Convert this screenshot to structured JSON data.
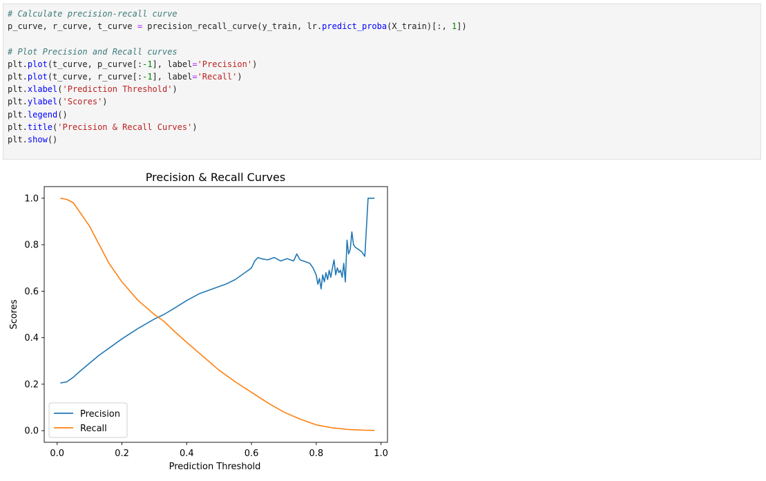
{
  "code_cell": {
    "lines": [
      [
        {
          "t": "# Calculate precision-recall curve",
          "c": "c-com"
        }
      ],
      [
        {
          "t": "p_curve, r_curve, t_curve ",
          "c": "c-txt"
        },
        {
          "t": "=",
          "c": "c-op"
        },
        {
          "t": " precision_recall_curve(y_train, lr.",
          "c": "c-txt"
        },
        {
          "t": "predict_proba",
          "c": "c-fn"
        },
        {
          "t": "(X_train)[:, ",
          "c": "c-txt"
        },
        {
          "t": "1",
          "c": "c-num"
        },
        {
          "t": "])",
          "c": "c-txt"
        }
      ],
      [],
      [
        {
          "t": "# Plot Precision and Recall curves",
          "c": "c-com"
        }
      ],
      [
        {
          "t": "plt.",
          "c": "c-txt"
        },
        {
          "t": "plot",
          "c": "c-fn"
        },
        {
          "t": "(t_curve, p_curve[:",
          "c": "c-txt"
        },
        {
          "t": "-1",
          "c": "c-num"
        },
        {
          "t": "], label",
          "c": "c-txt"
        },
        {
          "t": "=",
          "c": "c-op"
        },
        {
          "t": "'Precision'",
          "c": "c-str"
        },
        {
          "t": ")",
          "c": "c-txt"
        }
      ],
      [
        {
          "t": "plt.",
          "c": "c-txt"
        },
        {
          "t": "plot",
          "c": "c-fn"
        },
        {
          "t": "(t_curve, r_curve[:",
          "c": "c-txt"
        },
        {
          "t": "-1",
          "c": "c-num"
        },
        {
          "t": "], label",
          "c": "c-txt"
        },
        {
          "t": "=",
          "c": "c-op"
        },
        {
          "t": "'Recall'",
          "c": "c-str"
        },
        {
          "t": ")",
          "c": "c-txt"
        }
      ],
      [
        {
          "t": "plt.",
          "c": "c-txt"
        },
        {
          "t": "xlabel",
          "c": "c-fn"
        },
        {
          "t": "(",
          "c": "c-txt"
        },
        {
          "t": "'Prediction Threshold'",
          "c": "c-str"
        },
        {
          "t": ")",
          "c": "c-txt"
        }
      ],
      [
        {
          "t": "plt.",
          "c": "c-txt"
        },
        {
          "t": "ylabel",
          "c": "c-fn"
        },
        {
          "t": "(",
          "c": "c-txt"
        },
        {
          "t": "'Scores'",
          "c": "c-str"
        },
        {
          "t": ")",
          "c": "c-txt"
        }
      ],
      [
        {
          "t": "plt.",
          "c": "c-txt"
        },
        {
          "t": "legend",
          "c": "c-fn"
        },
        {
          "t": "()",
          "c": "c-txt"
        }
      ],
      [
        {
          "t": "plt.",
          "c": "c-txt"
        },
        {
          "t": "title",
          "c": "c-fn"
        },
        {
          "t": "(",
          "c": "c-txt"
        },
        {
          "t": "'Precision & Recall Curves'",
          "c": "c-str"
        },
        {
          "t": ")",
          "c": "c-txt"
        }
      ],
      [
        {
          "t": "plt.",
          "c": "c-txt"
        },
        {
          "t": "show",
          "c": "c-fn"
        },
        {
          "t": "()",
          "c": "c-txt"
        }
      ]
    ]
  },
  "chart_data": {
    "type": "line",
    "title": "Precision & Recall Curves",
    "xlabel": "Prediction Threshold",
    "ylabel": "Scores",
    "xlim": [
      -0.04,
      1.02
    ],
    "ylim": [
      -0.05,
      1.05
    ],
    "xticks": [
      "0.0",
      "0.2",
      "0.4",
      "0.6",
      "0.8",
      "1.0"
    ],
    "yticks": [
      "0.0",
      "0.2",
      "0.4",
      "0.6",
      "0.8",
      "1.0"
    ],
    "grid": false,
    "legend": "lower-left",
    "series": [
      {
        "name": "Precision",
        "color": "#1f77b4",
        "x": [
          0.01,
          0.03,
          0.05,
          0.07,
          0.1,
          0.13,
          0.16,
          0.2,
          0.25,
          0.3,
          0.33,
          0.36,
          0.4,
          0.44,
          0.48,
          0.52,
          0.55,
          0.58,
          0.6,
          0.61,
          0.62,
          0.63,
          0.65,
          0.67,
          0.69,
          0.71,
          0.73,
          0.74,
          0.75,
          0.76,
          0.78,
          0.79,
          0.8,
          0.805,
          0.81,
          0.815,
          0.82,
          0.825,
          0.83,
          0.835,
          0.84,
          0.845,
          0.85,
          0.855,
          0.86,
          0.865,
          0.87,
          0.875,
          0.88,
          0.885,
          0.89,
          0.895,
          0.9,
          0.905,
          0.91,
          0.915,
          0.92,
          0.93,
          0.94,
          0.95,
          0.96,
          0.97,
          0.98
        ],
        "y": [
          0.205,
          0.21,
          0.23,
          0.255,
          0.29,
          0.325,
          0.355,
          0.395,
          0.44,
          0.48,
          0.5,
          0.525,
          0.56,
          0.59,
          0.61,
          0.63,
          0.65,
          0.68,
          0.7,
          0.73,
          0.745,
          0.74,
          0.735,
          0.745,
          0.73,
          0.74,
          0.73,
          0.76,
          0.735,
          0.73,
          0.72,
          0.7,
          0.67,
          0.63,
          0.655,
          0.61,
          0.67,
          0.64,
          0.68,
          0.65,
          0.69,
          0.66,
          0.7,
          0.735,
          0.67,
          0.7,
          0.68,
          0.69,
          0.66,
          0.72,
          0.64,
          0.82,
          0.76,
          0.78,
          0.855,
          0.8,
          0.79,
          0.78,
          0.77,
          0.75,
          1.0,
          1.0,
          1.0
        ]
      },
      {
        "name": "Recall",
        "color": "#ff7f0e",
        "x": [
          0.01,
          0.03,
          0.05,
          0.07,
          0.1,
          0.13,
          0.16,
          0.2,
          0.25,
          0.3,
          0.33,
          0.36,
          0.4,
          0.45,
          0.5,
          0.55,
          0.6,
          0.65,
          0.7,
          0.75,
          0.8,
          0.85,
          0.9,
          0.95,
          0.98
        ],
        "y": [
          1.0,
          0.995,
          0.98,
          0.94,
          0.88,
          0.8,
          0.72,
          0.64,
          0.56,
          0.5,
          0.47,
          0.43,
          0.38,
          0.32,
          0.26,
          0.21,
          0.165,
          0.12,
          0.08,
          0.05,
          0.025,
          0.012,
          0.005,
          0.002,
          0.001
        ]
      }
    ]
  }
}
